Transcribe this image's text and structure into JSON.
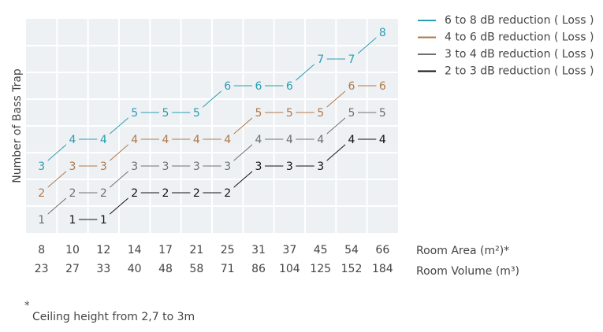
{
  "chart_data": {
    "type": "line",
    "y_label": "Number of Bass Trap",
    "x_label": "Room Area (m²)*",
    "x2_label": "Room Volume (m³)",
    "categories": [
      "8",
      "10",
      "12",
      "14",
      "17",
      "21",
      "25",
      "31",
      "37",
      "45",
      "54",
      "66"
    ],
    "categories2": [
      "23",
      "27",
      "33",
      "40",
      "48",
      "58",
      "71",
      "86",
      "104",
      "125",
      "152",
      "184"
    ],
    "ylim": [
      0.5,
      8.5
    ],
    "series": [
      {
        "name": "6 to 8 dB reduction ( Loss )",
        "color": "#2a9db3",
        "values": [
          3,
          4,
          4,
          5,
          5,
          5,
          6,
          6,
          6,
          7,
          7,
          8
        ]
      },
      {
        "name": "4 to 6 dB reduction ( Loss )",
        "color": "#b0784a",
        "values": [
          2,
          3,
          3,
          4,
          4,
          4,
          4,
          5,
          5,
          5,
          6,
          6
        ]
      },
      {
        "name": "3 to 4 dB reduction ( Loss )",
        "color": "#6f6f6f",
        "values": [
          1,
          2,
          2,
          3,
          3,
          3,
          3,
          4,
          4,
          4,
          5,
          5
        ]
      },
      {
        "name": "2 to 3 dB reduction ( Loss )",
        "color": "#111111",
        "values": [
          null,
          1,
          1,
          2,
          2,
          2,
          2,
          3,
          3,
          3,
          4,
          4
        ]
      }
    ],
    "footnote_symbol": "*",
    "footnote": "Ceiling height from 2,7 to 3m"
  }
}
